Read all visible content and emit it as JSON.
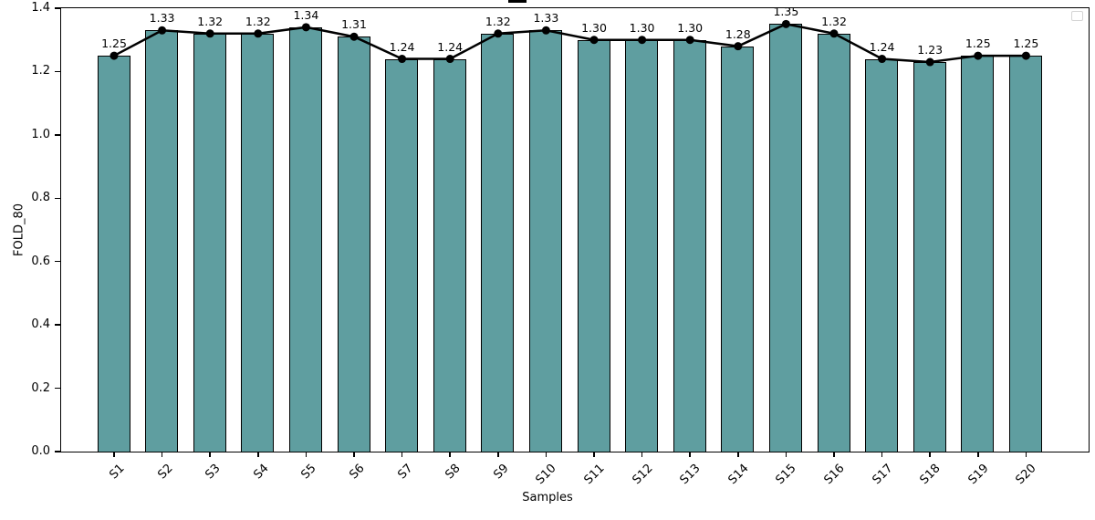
{
  "chart_data": {
    "type": "bar",
    "overlay": "line",
    "title_visible_fragment": "_",
    "xlabel": "Samples",
    "ylabel": "FOLD_80",
    "categories": [
      "S1",
      "S2",
      "S3",
      "S4",
      "S5",
      "S6",
      "S7",
      "S8",
      "S9",
      "S10",
      "S11",
      "S12",
      "S13",
      "S14",
      "S15",
      "S16",
      "S17",
      "S18",
      "S19",
      "S20"
    ],
    "values": [
      1.25,
      1.33,
      1.32,
      1.32,
      1.34,
      1.31,
      1.24,
      1.24,
      1.32,
      1.33,
      1.3,
      1.3,
      1.3,
      1.28,
      1.35,
      1.32,
      1.24,
      1.23,
      1.25,
      1.25
    ],
    "point_labels": [
      "1.25",
      "1.33",
      "1.32",
      "1.32",
      "1.34",
      "1.31",
      "1.24",
      "1.24",
      "1.32",
      "1.33",
      "1.30",
      "1.30",
      "1.30",
      "1.28",
      "1.35",
      "1.32",
      "1.24",
      "1.23",
      "1.25",
      "1.25"
    ],
    "ylim": [
      0,
      1.4
    ],
    "yticks": [
      "0.0",
      "0.2",
      "0.4",
      "0.6",
      "0.8",
      "1.0",
      "1.2",
      "1.4"
    ],
    "grid": false,
    "legend": {
      "visible": true,
      "entries": [],
      "position": "upper-right"
    },
    "colors": {
      "bar_fill": "#5f9ea0",
      "bar_edge": "#000000",
      "line": "#000000",
      "marker": "#000000",
      "text": "#000000",
      "legend_border": "#d5d5d5"
    }
  }
}
